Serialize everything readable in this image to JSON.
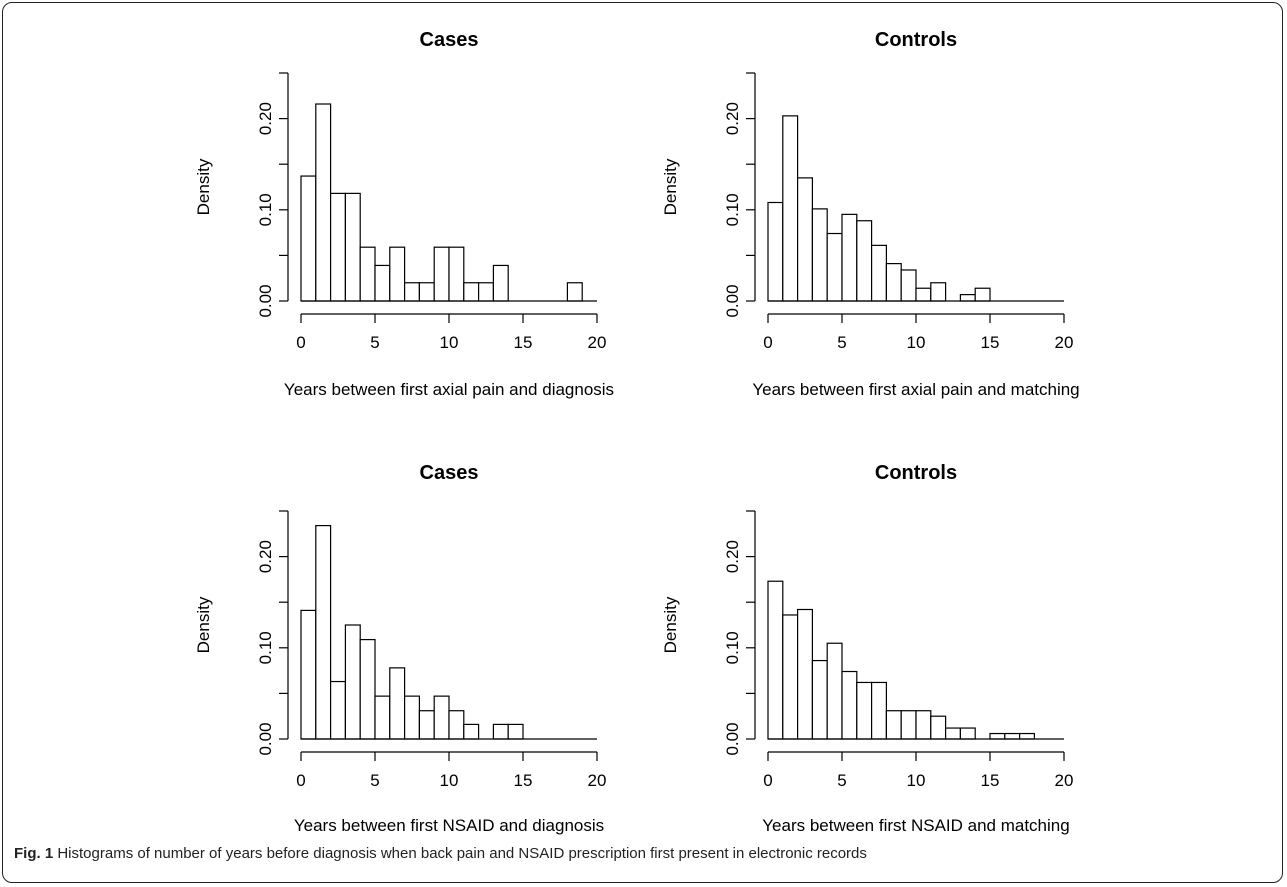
{
  "figure": {
    "caption_label": "Fig. 1",
    "caption_text": " Histograms of number of years before diagnosis when back pain and NSAID prescription first present in electronic records"
  },
  "chart_data": [
    {
      "type": "bar",
      "title": "Cases",
      "xlabel": "Years between first axial pain and diagnosis",
      "ylabel": "Density",
      "xlim": [
        0,
        20
      ],
      "ylim": [
        0,
        0.25
      ],
      "xticks": [
        0,
        5,
        10,
        15,
        20
      ],
      "yticks": [
        0.0,
        0.1,
        0.2
      ],
      "ytick_labels": [
        "0.00",
        "0.10",
        "0.20"
      ],
      "bin_width": 1,
      "values": [
        0.137,
        0.216,
        0.118,
        0.118,
        0.059,
        0.039,
        0.059,
        0.02,
        0.02,
        0.059,
        0.059,
        0.02,
        0.02,
        0.039,
        0,
        0,
        0,
        0,
        0.02,
        0
      ]
    },
    {
      "type": "bar",
      "title": "Controls",
      "xlabel": "Years between first axial pain and matching",
      "ylabel": "Density",
      "xlim": [
        0,
        20
      ],
      "ylim": [
        0,
        0.25
      ],
      "xticks": [
        0,
        5,
        10,
        15,
        20
      ],
      "yticks": [
        0.0,
        0.1,
        0.2
      ],
      "ytick_labels": [
        "0.00",
        "0.10",
        "0.20"
      ],
      "bin_width": 1,
      "values": [
        0.108,
        0.203,
        0.135,
        0.101,
        0.074,
        0.095,
        0.088,
        0.061,
        0.041,
        0.034,
        0.014,
        0.02,
        0,
        0.007,
        0.014,
        0,
        0,
        0,
        0,
        0
      ]
    },
    {
      "type": "bar",
      "title": "Cases",
      "xlabel": "Years between first NSAID and diagnosis",
      "ylabel": "Density",
      "xlim": [
        0,
        20
      ],
      "ylim": [
        0,
        0.25
      ],
      "xticks": [
        0,
        5,
        10,
        15,
        20
      ],
      "yticks": [
        0.0,
        0.1,
        0.2
      ],
      "ytick_labels": [
        "0.00",
        "0.10",
        "0.20"
      ],
      "bin_width": 1,
      "values": [
        0.141,
        0.234,
        0.063,
        0.125,
        0.109,
        0.047,
        0.078,
        0.047,
        0.031,
        0.047,
        0.031,
        0.016,
        0,
        0.016,
        0.016,
        0,
        0,
        0,
        0,
        0
      ]
    },
    {
      "type": "bar",
      "title": "Controls",
      "xlabel": "Years between first NSAID and matching",
      "ylabel": "Density",
      "xlim": [
        0,
        20
      ],
      "ylim": [
        0,
        0.25
      ],
      "xticks": [
        0,
        5,
        10,
        15,
        20
      ],
      "yticks": [
        0.0,
        0.1,
        0.2
      ],
      "ytick_labels": [
        "0.00",
        "0.10",
        "0.20"
      ],
      "bin_width": 1,
      "values": [
        0.173,
        0.136,
        0.142,
        0.086,
        0.105,
        0.074,
        0.062,
        0.062,
        0.031,
        0.031,
        0.031,
        0.025,
        0.012,
        0.012,
        0,
        0.006,
        0.006,
        0.006,
        0,
        0
      ]
    }
  ]
}
